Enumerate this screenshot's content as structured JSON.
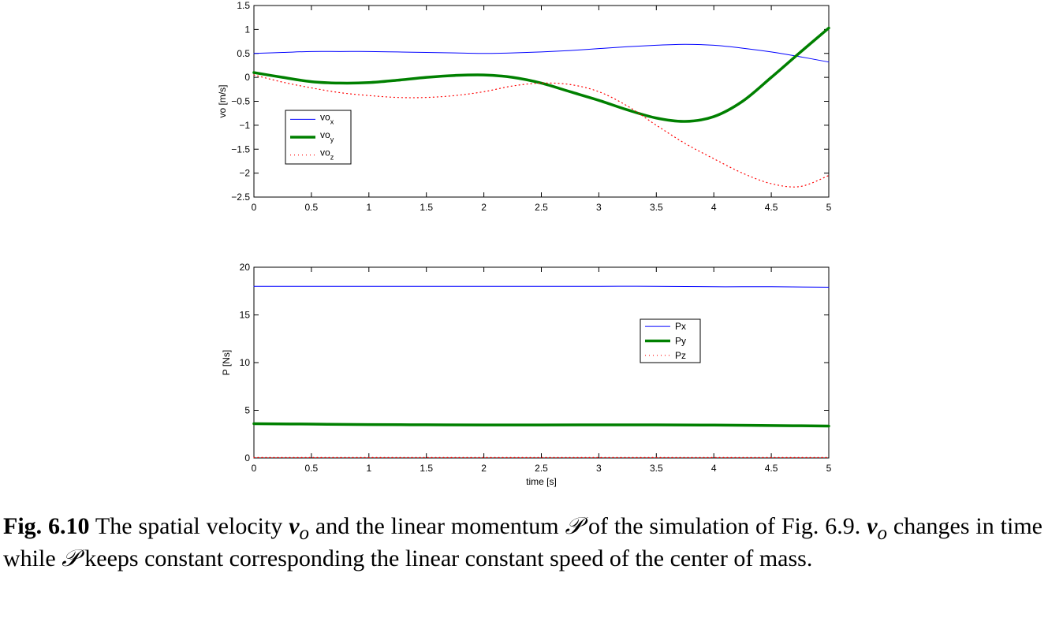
{
  "chart_data": [
    {
      "type": "line",
      "title": "",
      "ylabel": "vo [m/s]",
      "xlabel": "",
      "xlim": [
        0,
        5
      ],
      "ylim": [
        -2.5,
        1.5
      ],
      "xticks": [
        0,
        0.5,
        1,
        1.5,
        2,
        2.5,
        3,
        3.5,
        4,
        4.5,
        5
      ],
      "xtick_labels": [
        "0",
        "0.5",
        "1",
        "1.5",
        "2",
        "2.5",
        "3",
        "3.5",
        "4",
        "4.5",
        "5"
      ],
      "yticks": [
        -2.5,
        -2,
        -1.5,
        -1,
        -0.5,
        0,
        0.5,
        1,
        1.5
      ],
      "ytick_labels": [
        "−2.5",
        "−2",
        "−1.5",
        "−1",
        "−0.5",
        "0",
        "0.5",
        "1",
        "1.5"
      ],
      "legend_position": "middle-left",
      "grid": false,
      "x": [
        0,
        0.25,
        0.5,
        0.75,
        1,
        1.25,
        1.5,
        1.75,
        2,
        2.25,
        2.5,
        2.75,
        3,
        3.25,
        3.5,
        3.75,
        4,
        4.25,
        4.5,
        4.75,
        5
      ],
      "series": [
        {
          "legend_base": "vo",
          "legend_sub": "x",
          "color": "#0000ff",
          "style": "solid",
          "width": 1,
          "values": [
            0.5,
            0.52,
            0.54,
            0.54,
            0.54,
            0.53,
            0.52,
            0.51,
            0.5,
            0.51,
            0.53,
            0.56,
            0.6,
            0.64,
            0.67,
            0.69,
            0.67,
            0.61,
            0.53,
            0.43,
            0.32
          ]
        },
        {
          "legend_base": "vo",
          "legend_sub": "y",
          "color": "#008000",
          "style": "solid",
          "width": 3.5,
          "values": [
            0.1,
            0.0,
            -0.09,
            -0.12,
            -0.11,
            -0.06,
            0.0,
            0.04,
            0.05,
            0.0,
            -0.12,
            -0.3,
            -0.48,
            -0.68,
            -0.85,
            -0.92,
            -0.82,
            -0.5,
            0.0,
            0.52,
            1.03
          ]
        },
        {
          "legend_base": "vo",
          "legend_sub": "z",
          "color": "#ff0000",
          "style": "dotted",
          "width": 1,
          "values": [
            0.05,
            -0.1,
            -0.22,
            -0.32,
            -0.38,
            -0.42,
            -0.42,
            -0.38,
            -0.3,
            -0.18,
            -0.12,
            -0.15,
            -0.3,
            -0.6,
            -1.0,
            -1.38,
            -1.7,
            -2.0,
            -2.22,
            -2.28,
            -2.05
          ]
        }
      ]
    },
    {
      "type": "line",
      "title": "",
      "ylabel": "P [Ns]",
      "xlabel": "time [s]",
      "xlim": [
        0,
        5
      ],
      "ylim": [
        0,
        20
      ],
      "xticks": [
        0,
        0.5,
        1,
        1.5,
        2,
        2.5,
        3,
        3.5,
        4,
        4.5,
        5
      ],
      "xtick_labels": [
        "0",
        "0.5",
        "1",
        "1.5",
        "2",
        "2.5",
        "3",
        "3.5",
        "4",
        "4.5",
        "5"
      ],
      "yticks": [
        0,
        5,
        10,
        15,
        20
      ],
      "ytick_labels": [
        "0",
        "5",
        "10",
        "15",
        "20"
      ],
      "legend_position": "center-right",
      "grid": false,
      "x": [
        0,
        0.5,
        1,
        1.5,
        2,
        2.5,
        3,
        3.5,
        4,
        4.5,
        5
      ],
      "series": [
        {
          "name": "Px",
          "color": "#0000ff",
          "style": "solid",
          "width": 1,
          "values": [
            18.0,
            18.0,
            18.0,
            18.0,
            18.0,
            18.0,
            18.0,
            18.0,
            17.95,
            17.95,
            17.9
          ]
        },
        {
          "name": "Py",
          "color": "#008000",
          "style": "solid",
          "width": 3.5,
          "values": [
            3.6,
            3.55,
            3.5,
            3.48,
            3.46,
            3.46,
            3.47,
            3.47,
            3.45,
            3.4,
            3.35
          ]
        },
        {
          "name": "Pz",
          "color": "#ff0000",
          "style": "dotted",
          "width": 1,
          "values": [
            0.05,
            0.05,
            0.05,
            0.05,
            0.05,
            0.05,
            0.05,
            0.05,
            0.05,
            0.05,
            0.05
          ]
        }
      ]
    }
  ],
  "caption": {
    "label": "Fig. 6.10",
    "part1": " The spatial velocity ",
    "sym_v": "v",
    "sym_v_sub": "o",
    "part2": " and the linear momentum ",
    "sym_p": "𝒫",
    "part3": " of the simulation of Fig. 6.9. ",
    "sym_v2": "v",
    "sym_v2_sub": "o",
    "part4": " changes in time while ",
    "sym_p2": "𝒫",
    "part5": " keeps constant corresponding the linear constant speed of the center of mass."
  }
}
